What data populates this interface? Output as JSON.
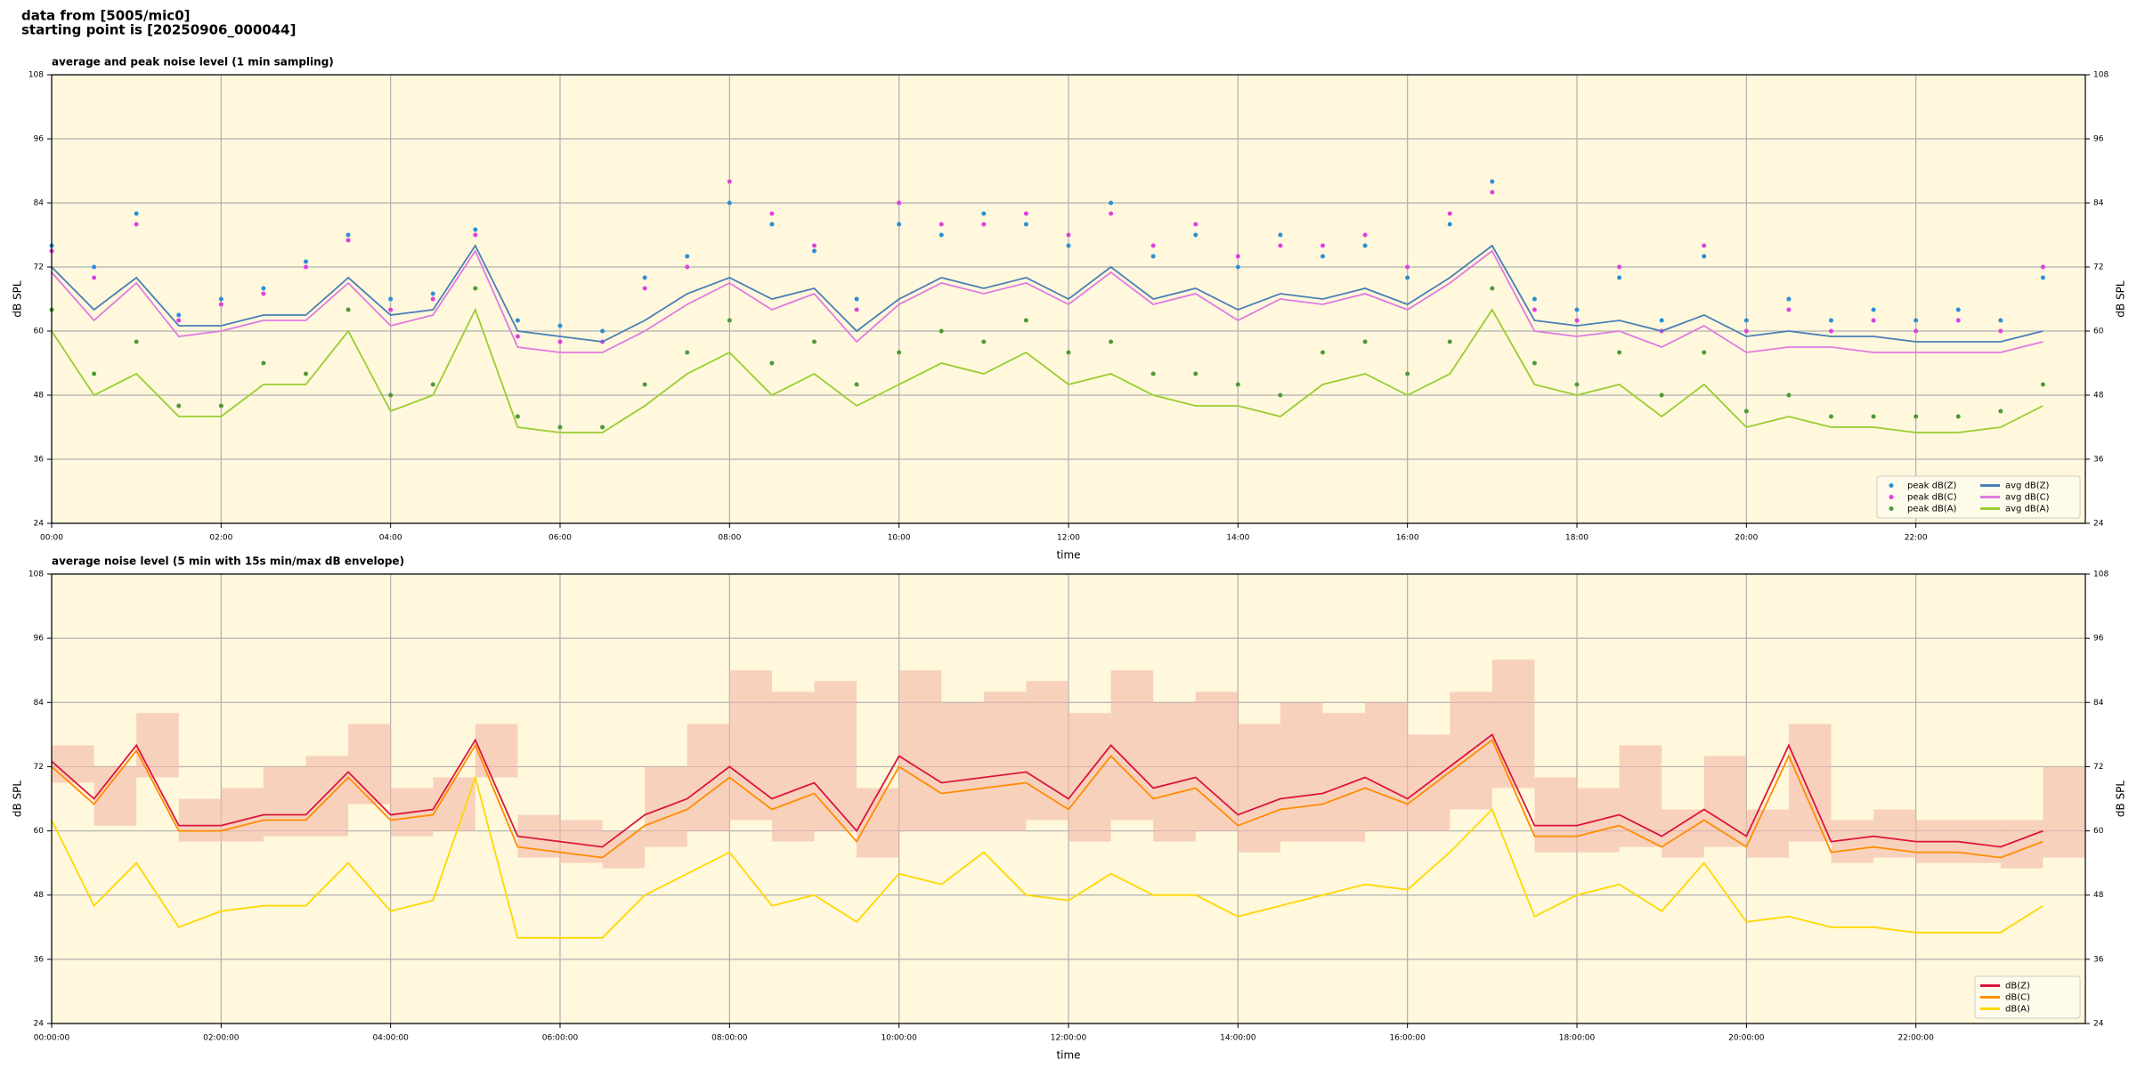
{
  "header": {
    "lines": [
      "data from [5005/mic0]",
      "starting point is [20250906_000044]"
    ]
  },
  "chart_data": [
    {
      "type": "line",
      "title": "average and peak noise level (1 min sampling)",
      "xlabel": "time",
      "ylabel": "dB SPL",
      "grid": true,
      "legend": "lower right",
      "legend_cols": 2,
      "xlim": [
        0,
        24
      ],
      "ylim": [
        24,
        108
      ],
      "yticks": [
        24,
        36,
        48,
        60,
        72,
        84,
        96,
        108
      ],
      "xticks": [
        {
          "value": 0,
          "label": "00:00"
        },
        {
          "value": 2,
          "label": "02:00"
        },
        {
          "value": 4,
          "label": "04:00"
        },
        {
          "value": 6,
          "label": "06:00"
        },
        {
          "value": 8,
          "label": "08:00"
        },
        {
          "value": 10,
          "label": "10:00"
        },
        {
          "value": 12,
          "label": "12:00"
        },
        {
          "value": 14,
          "label": "14:00"
        },
        {
          "value": 16,
          "label": "16:00"
        },
        {
          "value": 18,
          "label": "18:00"
        },
        {
          "value": 20,
          "label": "20:00"
        },
        {
          "value": 22,
          "label": "22:00"
        }
      ],
      "x": [
        0,
        0.5,
        1,
        1.5,
        2,
        2.5,
        3,
        3.5,
        4,
        4.5,
        5,
        5.5,
        6,
        6.5,
        7,
        7.5,
        8,
        8.5,
        9,
        9.5,
        10,
        10.5,
        11,
        11.5,
        12,
        12.5,
        13,
        13.5,
        14,
        14.5,
        15,
        15.5,
        16,
        16.5,
        17,
        17.5,
        18,
        18.5,
        19,
        19.5,
        20,
        20.5,
        21,
        21.5,
        22,
        22.5,
        23,
        23.5
      ],
      "series": [
        {
          "name": "peak dB(Z)",
          "style": "points",
          "color": "#2b8fd6",
          "values": [
            76,
            72,
            82,
            63,
            66,
            68,
            73,
            78,
            66,
            67,
            79,
            62,
            61,
            60,
            70,
            74,
            84,
            80,
            75,
            66,
            80,
            78,
            82,
            80,
            76,
            84,
            74,
            78,
            72,
            78,
            74,
            76,
            70,
            80,
            88,
            66,
            64,
            70,
            62,
            74,
            62,
            66,
            62,
            64,
            62,
            64,
            62,
            70
          ]
        },
        {
          "name": "peak dB(C)",
          "style": "points",
          "color": "#e040e0",
          "values": [
            75,
            70,
            80,
            62,
            65,
            67,
            72,
            77,
            64,
            66,
            78,
            59,
            58,
            58,
            68,
            72,
            88,
            82,
            76,
            64,
            84,
            80,
            80,
            82,
            78,
            82,
            76,
            80,
            74,
            76,
            76,
            78,
            72,
            82,
            86,
            64,
            62,
            72,
            60,
            76,
            60,
            64,
            60,
            62,
            60,
            62,
            60,
            72
          ]
        },
        {
          "name": "peak dB(A)",
          "style": "points",
          "color": "#4e9a3a",
          "values": [
            64,
            52,
            58,
            46,
            46,
            54,
            52,
            64,
            48,
            50,
            68,
            44,
            42,
            42,
            50,
            56,
            62,
            54,
            58,
            50,
            56,
            60,
            58,
            62,
            56,
            58,
            52,
            52,
            50,
            48,
            56,
            58,
            52,
            58,
            68,
            54,
            50,
            56,
            48,
            56,
            45,
            48,
            44,
            44,
            44,
            44,
            45,
            50
          ]
        },
        {
          "name": "avg dB(Z)",
          "style": "line",
          "color": "#4a7fb5",
          "values": [
            72,
            64,
            70,
            61,
            61,
            63,
            63,
            70,
            63,
            64,
            76,
            60,
            59,
            58,
            62,
            67,
            70,
            66,
            68,
            60,
            66,
            70,
            68,
            70,
            66,
            72,
            66,
            68,
            64,
            67,
            66,
            68,
            65,
            70,
            76,
            62,
            61,
            62,
            60,
            63,
            59,
            60,
            59,
            59,
            58,
            58,
            58,
            60
          ]
        },
        {
          "name": "avg dB(C)",
          "style": "line",
          "color": "#e07ae0",
          "values": [
            71,
            62,
            69,
            59,
            60,
            62,
            62,
            69,
            61,
            63,
            75,
            57,
            56,
            56,
            60,
            65,
            69,
            64,
            67,
            58,
            65,
            69,
            67,
            69,
            65,
            71,
            65,
            67,
            62,
            66,
            65,
            67,
            64,
            69,
            75,
            60,
            59,
            60,
            57,
            61,
            56,
            57,
            57,
            56,
            56,
            56,
            56,
            58
          ]
        },
        {
          "name": "avg dB(A)",
          "style": "line",
          "color": "#9acd32",
          "values": [
            60,
            48,
            52,
            44,
            44,
            50,
            50,
            60,
            45,
            48,
            64,
            42,
            41,
            41,
            46,
            52,
            56,
            48,
            52,
            46,
            50,
            54,
            52,
            56,
            50,
            52,
            48,
            46,
            46,
            44,
            50,
            52,
            48,
            52,
            64,
            50,
            48,
            50,
            44,
            50,
            42,
            44,
            42,
            42,
            41,
            41,
            42,
            46
          ]
        }
      ]
    },
    {
      "type": "line",
      "title": "average noise level (5 min with 15s min/max dB envelope)",
      "xlabel": "time",
      "ylabel": "dB SPL",
      "grid": true,
      "legend": "lower right",
      "legend_cols": 1,
      "xlim": [
        0,
        24
      ],
      "ylim": [
        24,
        108
      ],
      "yticks": [
        24,
        36,
        48,
        60,
        72,
        84,
        96,
        108
      ],
      "xticks": [
        {
          "value": 0,
          "label": "00:00:00"
        },
        {
          "value": 2,
          "label": "02:00:00"
        },
        {
          "value": 4,
          "label": "04:00:00"
        },
        {
          "value": 6,
          "label": "06:00:00"
        },
        {
          "value": 8,
          "label": "08:00:00"
        },
        {
          "value": 10,
          "label": "10:00:00"
        },
        {
          "value": 12,
          "label": "12:00:00"
        },
        {
          "value": 14,
          "label": "14:00:00"
        },
        {
          "value": 16,
          "label": "16:00:00"
        },
        {
          "value": 18,
          "label": "18:00:00"
        },
        {
          "value": 20,
          "label": "20:00:00"
        },
        {
          "value": 22,
          "label": "22:00:00"
        }
      ],
      "x": [
        0,
        0.5,
        1,
        1.5,
        2,
        2.5,
        3,
        3.5,
        4,
        4.5,
        5,
        5.5,
        6,
        6.5,
        7,
        7.5,
        8,
        8.5,
        9,
        9.5,
        10,
        10.5,
        11,
        11.5,
        12,
        12.5,
        13,
        13.5,
        14,
        14.5,
        15,
        15.5,
        16,
        16.5,
        17,
        17.5,
        18,
        18.5,
        19,
        19.5,
        20,
        20.5,
        21,
        21.5,
        22,
        22.5,
        23,
        23.5
      ],
      "envelope": {
        "color": "#f4b8a8",
        "low": [
          69,
          61,
          70,
          58,
          58,
          59,
          59,
          65,
          59,
          60,
          70,
          55,
          54,
          53,
          57,
          60,
          62,
          58,
          60,
          55,
          60,
          60,
          60,
          62,
          58,
          62,
          58,
          60,
          56,
          58,
          58,
          60,
          60,
          64,
          68,
          56,
          56,
          57,
          55,
          57,
          55,
          58,
          54,
          55,
          54,
          54,
          53,
          55
        ],
        "high": [
          76,
          72,
          82,
          66,
          68,
          72,
          74,
          80,
          68,
          70,
          80,
          63,
          62,
          60,
          72,
          80,
          90,
          86,
          88,
          68,
          90,
          84,
          86,
          88,
          82,
          90,
          84,
          86,
          80,
          84,
          82,
          84,
          78,
          86,
          92,
          70,
          68,
          76,
          64,
          74,
          64,
          80,
          62,
          64,
          62,
          62,
          62,
          72
        ]
      },
      "series": [
        {
          "name": "dB(Z)",
          "style": "line",
          "color": "#dc143c",
          "values": [
            73,
            66,
            76,
            61,
            61,
            63,
            63,
            71,
            63,
            64,
            77,
            59,
            58,
            57,
            63,
            66,
            72,
            66,
            69,
            60,
            74,
            69,
            70,
            71,
            66,
            76,
            68,
            70,
            63,
            66,
            67,
            70,
            66,
            72,
            78,
            61,
            61,
            63,
            59,
            64,
            59,
            76,
            58,
            59,
            58,
            58,
            57,
            60
          ]
        },
        {
          "name": "dB(C)",
          "style": "line",
          "color": "#ff8c00",
          "values": [
            72,
            65,
            75,
            60,
            60,
            62,
            62,
            70,
            62,
            63,
            76,
            57,
            56,
            55,
            61,
            64,
            70,
            64,
            67,
            58,
            72,
            67,
            68,
            69,
            64,
            74,
            66,
            68,
            61,
            64,
            65,
            68,
            65,
            71,
            77,
            59,
            59,
            61,
            57,
            62,
            57,
            74,
            56,
            57,
            56,
            56,
            55,
            58
          ]
        },
        {
          "name": "dB(A)",
          "style": "line",
          "color": "#ffd700",
          "values": [
            62,
            46,
            54,
            42,
            45,
            46,
            46,
            54,
            45,
            47,
            70,
            40,
            40,
            40,
            48,
            52,
            56,
            46,
            48,
            43,
            52,
            50,
            56,
            48,
            47,
            52,
            48,
            48,
            44,
            46,
            48,
            50,
            49,
            56,
            64,
            44,
            48,
            50,
            45,
            54,
            43,
            44,
            42,
            42,
            41,
            41,
            41,
            46
          ]
        }
      ]
    }
  ]
}
